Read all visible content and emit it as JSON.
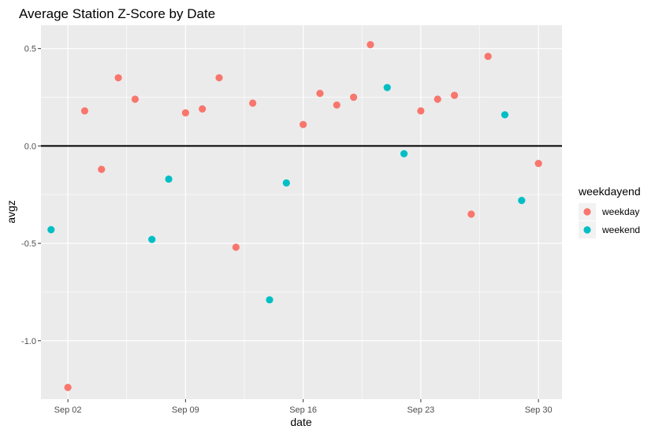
{
  "chart_data": {
    "type": "scatter",
    "title": "Average Station Z-Score by Date",
    "xlabel": "date",
    "ylabel": "avgz",
    "x_ticks": [
      "Sep 02",
      "Sep 09",
      "Sep 16",
      "Sep 23",
      "Sep 30"
    ],
    "x_tick_days": [
      2,
      9,
      16,
      23,
      30
    ],
    "y_ticks": [
      "0.5",
      "0.0",
      "-0.5",
      "-1.0"
    ],
    "y_tick_values": [
      0.5,
      0.0,
      -0.5,
      -1.0
    ],
    "xlim_days": [
      0.4,
      31.4
    ],
    "ylim": [
      -1.3,
      0.62
    ],
    "reference_line_y": 0,
    "grid": true,
    "legend": {
      "title": "weekdayend",
      "position": "right",
      "entries": [
        "weekday",
        "weekend"
      ]
    },
    "colors": {
      "weekday": "#F8766D",
      "weekend": "#00BFC4",
      "panel": "#EBEBEB",
      "grid": "#FFFFFF"
    },
    "series": [
      {
        "name": "weekday",
        "points": [
          {
            "x": "Sep 02",
            "y": -1.24
          },
          {
            "x": "Sep 03",
            "y": 0.18
          },
          {
            "x": "Sep 04",
            "y": -0.12
          },
          {
            "x": "Sep 05",
            "y": 0.35
          },
          {
            "x": "Sep 06",
            "y": 0.24
          },
          {
            "x": "Sep 09",
            "y": 0.17
          },
          {
            "x": "Sep 10",
            "y": 0.19
          },
          {
            "x": "Sep 11",
            "y": 0.35
          },
          {
            "x": "Sep 12",
            "y": -0.52
          },
          {
            "x": "Sep 13",
            "y": 0.22
          },
          {
            "x": "Sep 16",
            "y": 0.11
          },
          {
            "x": "Sep 17",
            "y": 0.27
          },
          {
            "x": "Sep 18",
            "y": 0.21
          },
          {
            "x": "Sep 19",
            "y": 0.25
          },
          {
            "x": "Sep 20",
            "y": 0.52
          },
          {
            "x": "Sep 23",
            "y": 0.18
          },
          {
            "x": "Sep 24",
            "y": 0.24
          },
          {
            "x": "Sep 25",
            "y": 0.26
          },
          {
            "x": "Sep 26",
            "y": -0.35
          },
          {
            "x": "Sep 27",
            "y": 0.46
          },
          {
            "x": "Sep 30",
            "y": -0.09
          }
        ]
      },
      {
        "name": "weekend",
        "points": [
          {
            "x": "Sep 01",
            "y": -0.43
          },
          {
            "x": "Sep 07",
            "y": -0.48
          },
          {
            "x": "Sep 08",
            "y": -0.17
          },
          {
            "x": "Sep 14",
            "y": -0.79
          },
          {
            "x": "Sep 15",
            "y": -0.19
          },
          {
            "x": "Sep 21",
            "y": 0.3
          },
          {
            "x": "Sep 22",
            "y": -0.04
          },
          {
            "x": "Sep 28",
            "y": 0.16
          },
          {
            "x": "Sep 29",
            "y": -0.28
          }
        ]
      }
    ]
  }
}
